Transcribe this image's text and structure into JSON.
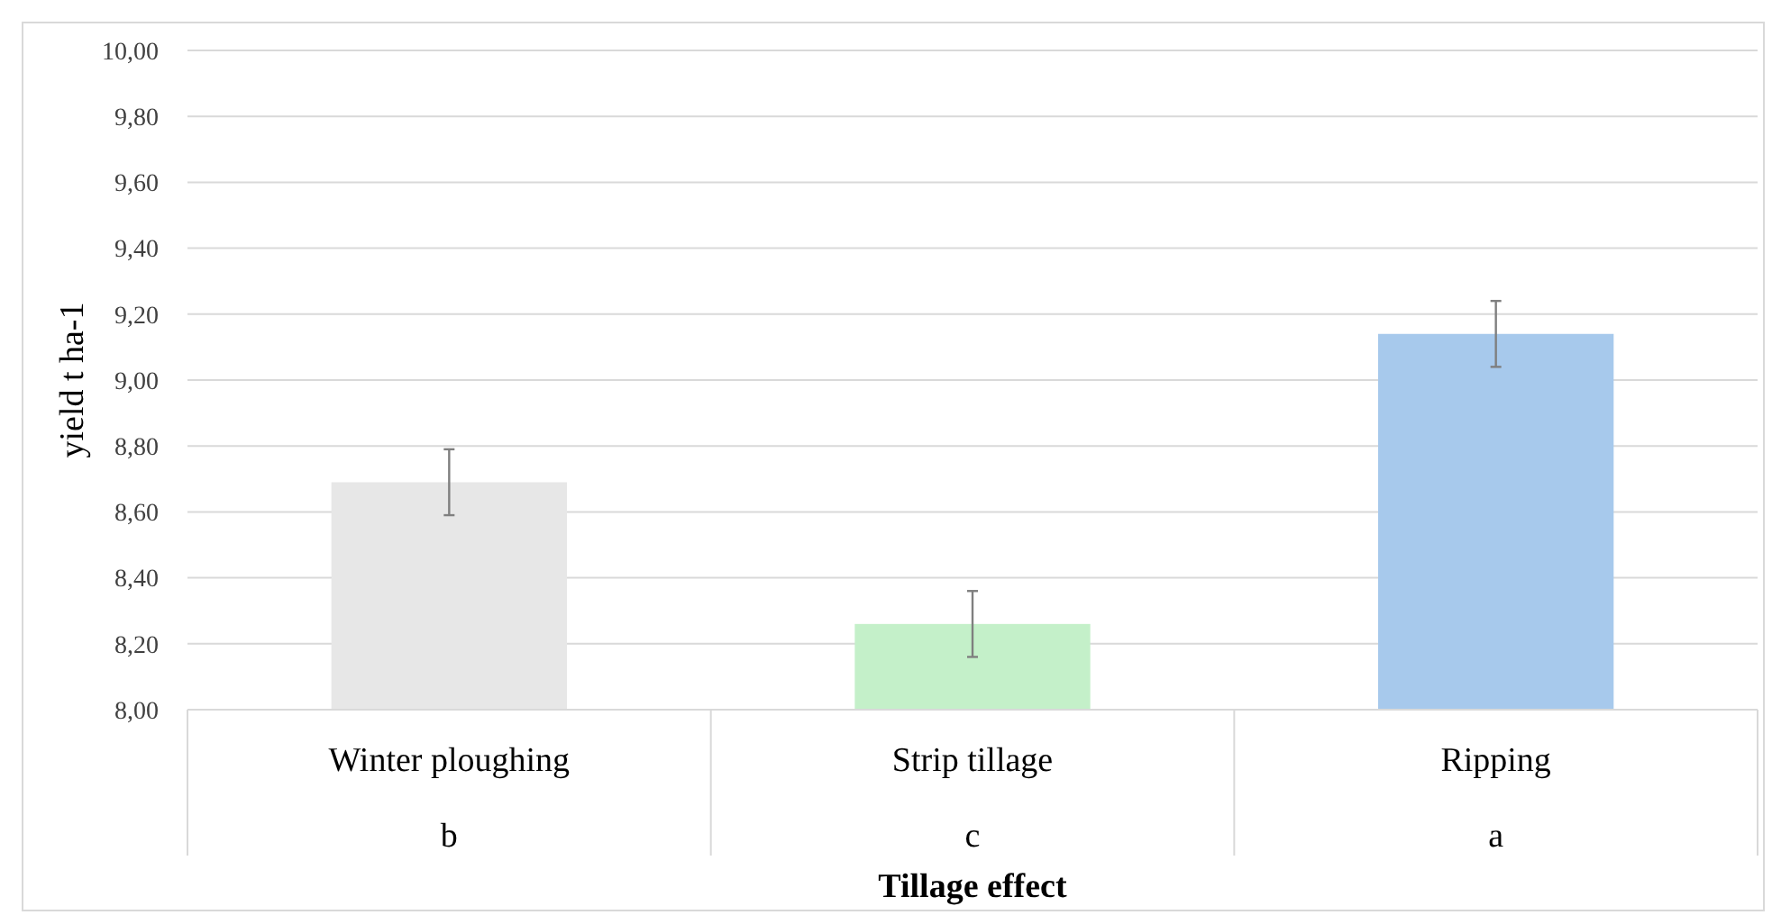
{
  "chart_data": {
    "type": "bar",
    "xlabel": "Tillage effect",
    "ylabel": "yield t ha-1",
    "categories": [
      "Winter ploughing",
      "Strip tillage",
      "Ripping"
    ],
    "values": [
      8.69,
      8.26,
      9.14
    ],
    "colors": [
      "#e7e7e7",
      "#c4f0c9",
      "#a7c9ec"
    ],
    "errors": [
      0.1,
      0.1,
      0.1
    ],
    "ylim": [
      8,
      10
    ],
    "yticks": [
      {
        "value": 8,
        "label": "8,00"
      },
      {
        "value": 8.2,
        "label": "8,20"
      },
      {
        "value": 8.4,
        "label": "8,40"
      },
      {
        "value": 8.6,
        "label": "8,60"
      },
      {
        "value": 8.8,
        "label": "8,80"
      },
      {
        "value": 9,
        "label": "9,00"
      },
      {
        "value": 9.2,
        "label": "9,20"
      },
      {
        "value": 9.4,
        "label": "9,40"
      },
      {
        "value": 9.6,
        "label": "9,60"
      },
      {
        "value": 9.8,
        "label": "9,80"
      },
      {
        "value": 10,
        "label": "10,00"
      }
    ],
    "grid": "y",
    "annotations": [
      "b",
      "c",
      "a"
    ]
  }
}
